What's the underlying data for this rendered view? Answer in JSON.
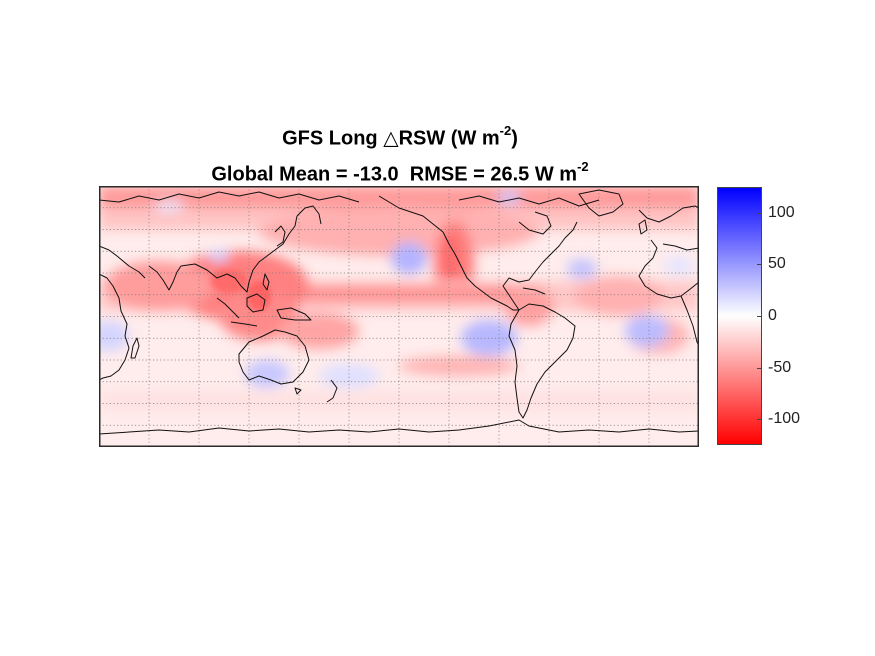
{
  "title": {
    "line1": "GFS Long △RSW (W m",
    "line1_exp": "-2",
    "line1_tail": ")",
    "line2_mean_label": "Global Mean = ",
    "line2_mean_value": "-13.0",
    "line2_rmse_label": "RMSE = ",
    "line2_rmse_value": "26.5",
    "line2_unit": "W m",
    "line2_exp": "-2"
  },
  "colorbar": {
    "min": -125,
    "max": 125,
    "ticks": [
      100,
      50,
      0,
      -50,
      -100
    ],
    "tick_labels": [
      "100",
      "50",
      "0",
      "-50",
      "-100"
    ],
    "colors": {
      "high": "#0000ff",
      "mid": "#ffffff",
      "low": "#ff0000"
    }
  },
  "map": {
    "projection": "equirectangular",
    "lon_range": [
      0,
      360
    ],
    "lat_range": [
      -90,
      90
    ],
    "grid_lines": "dotted"
  }
}
